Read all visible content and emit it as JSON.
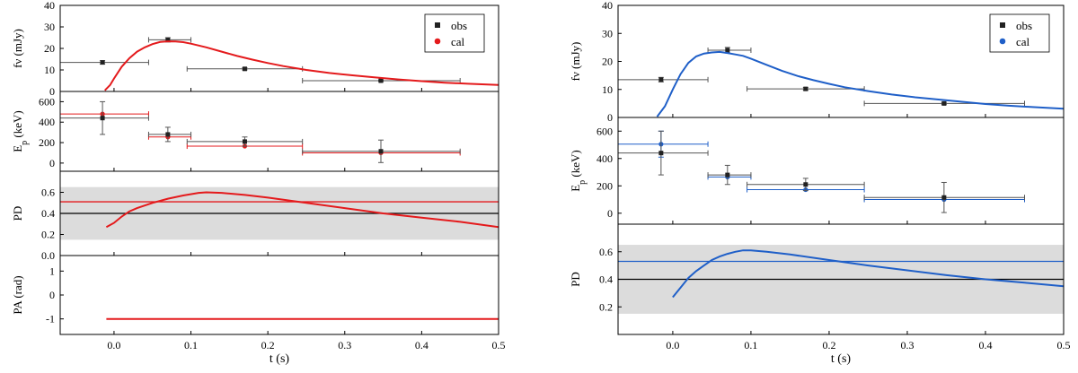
{
  "chart_data": [
    {
      "type": "scatter",
      "name": "left-figure",
      "line_color": "#e41a1c",
      "xlabel": "t (s)",
      "xlim": [
        -0.07,
        0.5
      ],
      "xticks": [
        0.0,
        0.1,
        0.2,
        0.3,
        0.4,
        0.5
      ],
      "xtick_labels": [
        "0.0",
        "0.1",
        "0.2",
        "0.3",
        "0.4",
        "0.5"
      ],
      "panels": [
        {
          "id": "flux",
          "ylabel": "fν (mJy)",
          "ylim": [
            0,
            40
          ],
          "yticks": [
            0,
            10,
            20,
            30,
            40
          ],
          "legend": {
            "position": "top-right",
            "entries": [
              "obs",
              "cal"
            ]
          },
          "observed": [
            {
              "x": -0.015,
              "xerr_lo": -0.07,
              "xerr_hi": 0.045,
              "y": 13.5,
              "yerr": 0.8
            },
            {
              "x": 0.07,
              "xerr_lo": 0.045,
              "xerr_hi": 0.1,
              "y": 24.0,
              "yerr": 1.0
            },
            {
              "x": 0.17,
              "xerr_lo": 0.095,
              "xerr_hi": 0.245,
              "y": 10.5,
              "yerr": 0.5
            },
            {
              "x": 0.347,
              "xerr_lo": 0.245,
              "xerr_hi": 0.45,
              "y": 5.0,
              "yerr": 0.4
            }
          ],
          "model_curve": {
            "x": [
              -0.012,
              -0.005,
              0.0,
              0.01,
              0.02,
              0.03,
              0.04,
              0.05,
              0.06,
              0.07,
              0.08,
              0.09,
              0.1,
              0.12,
              0.14,
              0.16,
              0.18,
              0.2,
              0.22,
              0.25,
              0.28,
              0.31,
              0.34,
              0.37,
              0.4,
              0.43,
              0.46,
              0.5
            ],
            "y": [
              0.5,
              3,
              6,
              11.5,
              15.5,
              18.5,
              20.5,
              22,
              23,
              23.3,
              23.2,
              22.9,
              22.2,
              20.5,
              18.5,
              16.5,
              14.8,
              13.2,
              11.8,
              10.0,
              8.6,
              7.5,
              6.5,
              5.6,
              4.8,
              4.1,
              3.6,
              3.0
            ]
          }
        },
        {
          "id": "ep",
          "ylabel": "Ep (keV)",
          "ylim": [
            -80,
            700
          ],
          "yticks": [
            0,
            200,
            400,
            600
          ],
          "observed": [
            {
              "x": -0.015,
              "xerr_lo": -0.07,
              "xerr_hi": 0.045,
              "y": 440,
              "yerr": 160
            },
            {
              "x": 0.07,
              "xerr_lo": 0.045,
              "xerr_hi": 0.1,
              "y": 280,
              "yerr": 70
            },
            {
              "x": 0.17,
              "xerr_lo": 0.095,
              "xerr_hi": 0.245,
              "y": 210,
              "yerr": 45
            },
            {
              "x": 0.347,
              "xerr_lo": 0.245,
              "xerr_hi": 0.45,
              "y": 115,
              "yerr": 110
            }
          ],
          "calculated": [
            {
              "x": -0.015,
              "xerr_lo": -0.07,
              "xerr_hi": 0.045,
              "y": 480
            },
            {
              "x": 0.07,
              "xerr_lo": 0.045,
              "xerr_hi": 0.1,
              "y": 255
            },
            {
              "x": 0.17,
              "xerr_lo": 0.095,
              "xerr_hi": 0.245,
              "y": 165
            },
            {
              "x": 0.347,
              "xerr_lo": 0.245,
              "xerr_hi": 0.45,
              "y": 100
            }
          ]
        },
        {
          "id": "pd",
          "ylabel": "PD",
          "ylim": [
            0,
            0.8
          ],
          "yticks": [
            0.0,
            0.2,
            0.4,
            0.6
          ],
          "ytick_labels": [
            "0.0",
            "0.2",
            "0.4",
            "0.6"
          ],
          "band": [
            0.15,
            0.65
          ],
          "obs_line": 0.4,
          "cal_line": 0.51,
          "model_curve": {
            "x": [
              -0.01,
              0.0,
              0.01,
              0.02,
              0.03,
              0.05,
              0.07,
              0.09,
              0.11,
              0.12,
              0.14,
              0.17,
              0.2,
              0.25,
              0.3,
              0.35,
              0.4,
              0.45,
              0.5
            ],
            "y": [
              0.27,
              0.31,
              0.37,
              0.42,
              0.45,
              0.5,
              0.54,
              0.57,
              0.595,
              0.6,
              0.595,
              0.575,
              0.55,
              0.5,
              0.45,
              0.4,
              0.36,
              0.32,
              0.27
            ]
          }
        },
        {
          "id": "pa",
          "ylabel": "PA (rad)",
          "ylim": [
            -1.65,
            1.65
          ],
          "yticks": [
            -1,
            0,
            1
          ],
          "model_curve": {
            "x": [
              -0.01,
              0.5
            ],
            "y": [
              -1.0,
              -1.0
            ]
          }
        }
      ]
    },
    {
      "type": "scatter",
      "name": "right-figure",
      "line_color": "#1f5fc8",
      "xlabel": "t (s)",
      "xlim": [
        -0.07,
        0.5
      ],
      "xticks": [
        0.0,
        0.1,
        0.2,
        0.3,
        0.4,
        0.5
      ],
      "xtick_labels": [
        "0.0",
        "0.1",
        "0.2",
        "0.3",
        "0.4",
        "0.5"
      ],
      "panels": [
        {
          "id": "flux",
          "ylabel": "fν (mJy)",
          "ylim": [
            0,
            40
          ],
          "yticks": [
            0,
            10,
            20,
            30,
            40
          ],
          "legend": {
            "position": "top-right",
            "entries": [
              "obs",
              "cal"
            ]
          },
          "observed": [
            {
              "x": -0.015,
              "xerr_lo": -0.07,
              "xerr_hi": 0.045,
              "y": 13.5,
              "yerr": 0.8
            },
            {
              "x": 0.07,
              "xerr_lo": 0.045,
              "xerr_hi": 0.1,
              "y": 24.0,
              "yerr": 1.0
            },
            {
              "x": 0.17,
              "xerr_lo": 0.095,
              "xerr_hi": 0.245,
              "y": 10.2,
              "yerr": 0.5
            },
            {
              "x": 0.347,
              "xerr_lo": 0.245,
              "xerr_hi": 0.45,
              "y": 5.0,
              "yerr": 0.4
            }
          ],
          "model_curve": {
            "x": [
              -0.02,
              -0.01,
              0.0,
              0.01,
              0.02,
              0.03,
              0.04,
              0.05,
              0.06,
              0.07,
              0.08,
              0.09,
              0.1,
              0.12,
              0.14,
              0.16,
              0.18,
              0.2,
              0.22,
              0.25,
              0.28,
              0.31,
              0.34,
              0.37,
              0.4,
              0.43,
              0.46,
              0.5
            ],
            "y": [
              0.3,
              4,
              10,
              15.5,
              19.5,
              21.8,
              22.8,
              23.2,
              23.4,
              23.0,
              22.5,
              22.0,
              21.0,
              18.8,
              16.6,
              14.8,
              13.3,
              12.0,
              10.8,
              9.4,
              8.2,
              7.2,
              6.4,
              5.6,
              4.8,
              4.2,
              3.7,
              3.1
            ]
          }
        },
        {
          "id": "ep",
          "ylabel": "Ep (keV)",
          "ylim": [
            -80,
            700
          ],
          "yticks": [
            0,
            200,
            400,
            600
          ],
          "observed": [
            {
              "x": -0.015,
              "xerr_lo": -0.07,
              "xerr_hi": 0.045,
              "y": 440,
              "yerr": 160
            },
            {
              "x": 0.07,
              "xerr_lo": 0.045,
              "xerr_hi": 0.1,
              "y": 280,
              "yerr": 70
            },
            {
              "x": 0.17,
              "xerr_lo": 0.095,
              "xerr_hi": 0.245,
              "y": 210,
              "yerr": 45
            },
            {
              "x": 0.347,
              "xerr_lo": 0.245,
              "xerr_hi": 0.45,
              "y": 115,
              "yerr": 110
            }
          ],
          "calculated": [
            {
              "x": -0.015,
              "xerr_lo": -0.07,
              "xerr_hi": 0.045,
              "y": 505,
              "yerr": 95
            },
            {
              "x": 0.07,
              "xerr_lo": 0.045,
              "xerr_hi": 0.1,
              "y": 265
            },
            {
              "x": 0.17,
              "xerr_lo": 0.095,
              "xerr_hi": 0.245,
              "y": 172
            },
            {
              "x": 0.347,
              "xerr_lo": 0.245,
              "xerr_hi": 0.45,
              "y": 100
            }
          ]
        },
        {
          "id": "pd",
          "ylabel": "PD",
          "ylim": [
            0,
            0.8
          ],
          "yticks": [
            0.2,
            0.4,
            0.6
          ],
          "ytick_labels": [
            "0.2",
            "0.4",
            "0.6"
          ],
          "band": [
            0.15,
            0.65
          ],
          "obs_line": 0.4,
          "cal_line": 0.53,
          "model_curve": {
            "x": [
              0.0,
              0.01,
              0.02,
              0.03,
              0.04,
              0.05,
              0.06,
              0.07,
              0.08,
              0.09,
              0.1,
              0.12,
              0.15,
              0.2,
              0.25,
              0.3,
              0.35,
              0.4,
              0.45,
              0.5
            ],
            "y": [
              0.27,
              0.34,
              0.41,
              0.46,
              0.5,
              0.54,
              0.565,
              0.585,
              0.6,
              0.61,
              0.61,
              0.6,
              0.58,
              0.54,
              0.5,
              0.465,
              0.43,
              0.4,
              0.375,
              0.35
            ]
          }
        }
      ]
    }
  ]
}
